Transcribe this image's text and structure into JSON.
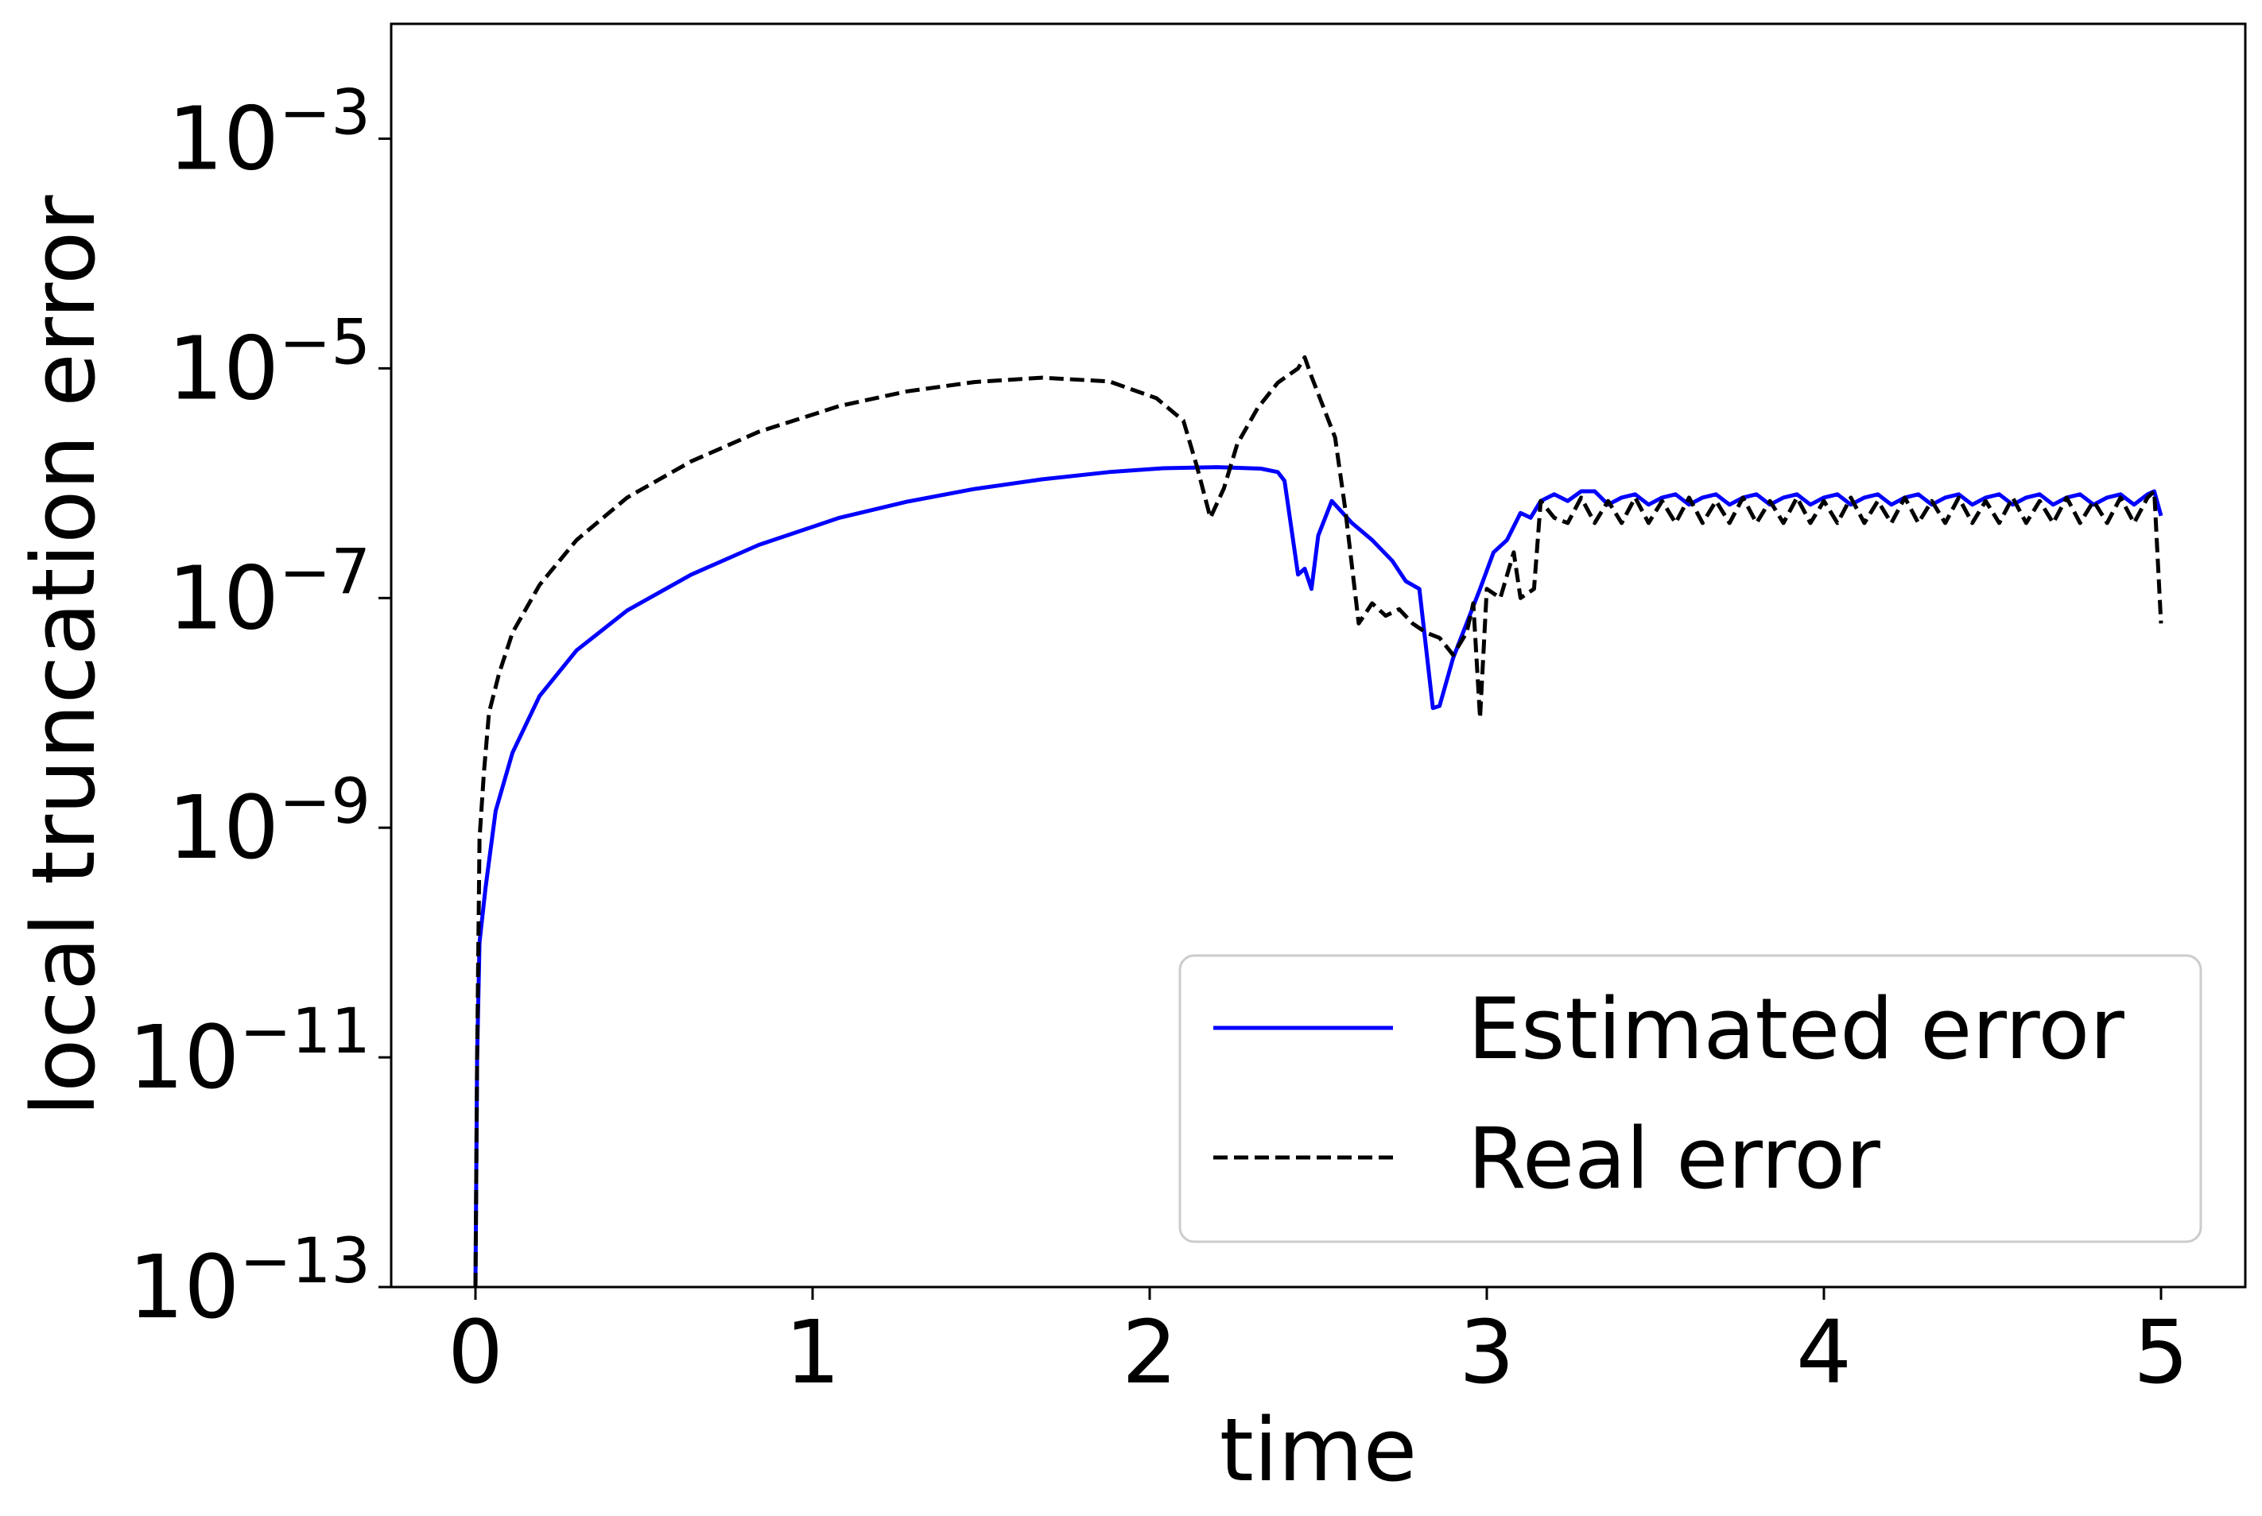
{
  "chart_data": {
    "type": "line",
    "title": "",
    "xlabel": "time",
    "ylabel": "local truncation error",
    "xlim": [
      -0.25,
      5.25
    ],
    "ylim": [
      1e-13,
      0.01
    ],
    "yscale": "log",
    "x_ticks": [
      {
        "value": 0,
        "label": "0"
      },
      {
        "value": 1,
        "label": "1"
      },
      {
        "value": 2,
        "label": "2"
      },
      {
        "value": 3,
        "label": "3"
      },
      {
        "value": 4,
        "label": "4"
      },
      {
        "value": 5,
        "label": "5"
      }
    ],
    "y_ticks": [
      {
        "value": 1e-13,
        "base": "10",
        "exp": "−13"
      },
      {
        "value": 1e-11,
        "base": "10",
        "exp": "−11"
      },
      {
        "value": 1e-09,
        "base": "10",
        "exp": "−9"
      },
      {
        "value": 1e-07,
        "base": "10",
        "exp": "−7"
      },
      {
        "value": 1e-05,
        "base": "10",
        "exp": "−5"
      },
      {
        "value": 0.001,
        "base": "10",
        "exp": "−3"
      }
    ],
    "grid": false,
    "legend_position": "lower-right",
    "series": [
      {
        "name": "Estimated error",
        "color": "#0000ff",
        "style": "solid",
        "points": [
          [
            0.0,
            1e-13
          ],
          [
            0.005,
            1e-11
          ],
          [
            0.012,
            1e-10
          ],
          [
            0.03,
            3e-10
          ],
          [
            0.06,
            1.4e-09
          ],
          [
            0.11,
            4.5e-09
          ],
          [
            0.19,
            1.4e-08
          ],
          [
            0.3,
            3.5e-08
          ],
          [
            0.45,
            7.8e-08
          ],
          [
            0.64,
            1.6e-07
          ],
          [
            0.84,
            2.9e-07
          ],
          [
            1.08,
            5e-07
          ],
          [
            1.28,
            6.9e-07
          ],
          [
            1.48,
            8.9e-07
          ],
          [
            1.68,
            1.08e-06
          ],
          [
            1.88,
            1.25e-06
          ],
          [
            2.04,
            1.35e-06
          ],
          [
            2.2,
            1.38e-06
          ],
          [
            2.33,
            1.34e-06
          ],
          [
            2.38,
            1.25e-06
          ],
          [
            2.4,
            1.05e-06
          ],
          [
            2.44,
            1.6e-07
          ],
          [
            2.46,
            1.8e-07
          ],
          [
            2.48,
            1.2e-07
          ],
          [
            2.5,
            3.5e-07
          ],
          [
            2.54,
            7e-07
          ],
          [
            2.6,
            4.5e-07
          ],
          [
            2.66,
            3.2e-07
          ],
          [
            2.72,
            2.1e-07
          ],
          [
            2.76,
            1.4e-07
          ],
          [
            2.8,
            1.2e-07
          ],
          [
            2.84,
            1.1e-08
          ],
          [
            2.86,
            1.15e-08
          ],
          [
            2.9,
            3e-08
          ],
          [
            2.94,
            6e-08
          ],
          [
            2.98,
            1.2e-07
          ],
          [
            3.02,
            2.5e-07
          ],
          [
            3.06,
            3.2e-07
          ],
          [
            3.1,
            5.5e-07
          ],
          [
            3.13,
            5e-07
          ],
          [
            3.16,
            7e-07
          ],
          [
            3.2,
            8e-07
          ],
          [
            3.24,
            7e-07
          ],
          [
            3.28,
            8.5e-07
          ],
          [
            3.32,
            8.5e-07
          ],
          [
            3.36,
            6.5e-07
          ],
          [
            3.4,
            7.5e-07
          ],
          [
            3.44,
            8e-07
          ],
          [
            3.48,
            6.5e-07
          ],
          [
            3.52,
            7.5e-07
          ],
          [
            3.56,
            8e-07
          ],
          [
            3.6,
            6.5e-07
          ],
          [
            3.64,
            7.5e-07
          ],
          [
            3.68,
            8e-07
          ],
          [
            3.72,
            6.5e-07
          ],
          [
            3.76,
            7.5e-07
          ],
          [
            3.8,
            8e-07
          ],
          [
            3.84,
            6.5e-07
          ],
          [
            3.88,
            7.5e-07
          ],
          [
            3.92,
            8e-07
          ],
          [
            3.96,
            6.5e-07
          ],
          [
            4.0,
            7.5e-07
          ],
          [
            4.04,
            8e-07
          ],
          [
            4.08,
            6.5e-07
          ],
          [
            4.12,
            7.5e-07
          ],
          [
            4.16,
            8e-07
          ],
          [
            4.2,
            6.5e-07
          ],
          [
            4.24,
            7.5e-07
          ],
          [
            4.28,
            8e-07
          ],
          [
            4.32,
            6.5e-07
          ],
          [
            4.36,
            7.5e-07
          ],
          [
            4.4,
            8e-07
          ],
          [
            4.44,
            6.5e-07
          ],
          [
            4.48,
            7.5e-07
          ],
          [
            4.52,
            8e-07
          ],
          [
            4.56,
            6.5e-07
          ],
          [
            4.6,
            7.5e-07
          ],
          [
            4.64,
            8e-07
          ],
          [
            4.68,
            6.5e-07
          ],
          [
            4.72,
            7.5e-07
          ],
          [
            4.76,
            8e-07
          ],
          [
            4.8,
            6.5e-07
          ],
          [
            4.84,
            7.5e-07
          ],
          [
            4.88,
            8e-07
          ],
          [
            4.92,
            6.5e-07
          ],
          [
            4.96,
            8e-07
          ],
          [
            4.98,
            8.5e-07
          ],
          [
            5.0,
            5.2e-07
          ]
        ]
      },
      {
        "name": "Real error",
        "color": "#000000",
        "style": "dashed",
        "points": [
          [
            0.0,
            1e-13
          ],
          [
            0.005,
            1e-11
          ],
          [
            0.012,
            8e-10
          ],
          [
            0.025,
            3e-09
          ],
          [
            0.04,
            1e-08
          ],
          [
            0.07,
            2.2e-08
          ],
          [
            0.11,
            5e-08
          ],
          [
            0.19,
            1.3e-07
          ],
          [
            0.3,
            3.2e-07
          ],
          [
            0.45,
            7.5e-07
          ],
          [
            0.64,
            1.55e-06
          ],
          [
            0.84,
            2.8e-06
          ],
          [
            1.08,
            4.7e-06
          ],
          [
            1.28,
            6.3e-06
          ],
          [
            1.48,
            7.6e-06
          ],
          [
            1.68,
            8.3e-06
          ],
          [
            1.88,
            7.7e-06
          ],
          [
            2.02,
            5.5e-06
          ],
          [
            2.1,
            3.5e-06
          ],
          [
            2.14,
            1.4e-06
          ],
          [
            2.18,
            5e-07
          ],
          [
            2.22,
            9e-07
          ],
          [
            2.26,
            2.2e-06
          ],
          [
            2.32,
            4.5e-06
          ],
          [
            2.38,
            7.5e-06
          ],
          [
            2.44,
            1e-05
          ],
          [
            2.46,
            1.25e-05
          ],
          [
            2.48,
            8.5e-06
          ],
          [
            2.5,
            6e-06
          ],
          [
            2.55,
            2.5e-06
          ],
          [
            2.58,
            6e-07
          ],
          [
            2.62,
            6e-08
          ],
          [
            2.66,
            9e-08
          ],
          [
            2.7,
            7e-08
          ],
          [
            2.74,
            8e-08
          ],
          [
            2.78,
            6e-08
          ],
          [
            2.82,
            5e-08
          ],
          [
            2.86,
            4.5e-08
          ],
          [
            2.9,
            3.2e-08
          ],
          [
            2.94,
            5e-08
          ],
          [
            2.96,
            9e-08
          ],
          [
            2.98,
            9e-09
          ],
          [
            3.0,
            1.2e-07
          ],
          [
            3.04,
            1e-07
          ],
          [
            3.08,
            2.5e-07
          ],
          [
            3.1,
            1e-07
          ],
          [
            3.14,
            1.2e-07
          ],
          [
            3.16,
            7e-07
          ],
          [
            3.2,
            5e-07
          ],
          [
            3.24,
            4.5e-07
          ],
          [
            3.28,
            7.5e-07
          ],
          [
            3.32,
            4.5e-07
          ],
          [
            3.36,
            7e-07
          ],
          [
            3.4,
            4.5e-07
          ],
          [
            3.44,
            7.5e-07
          ],
          [
            3.48,
            4.5e-07
          ],
          [
            3.52,
            7e-07
          ],
          [
            3.56,
            4.5e-07
          ],
          [
            3.6,
            7.5e-07
          ],
          [
            3.64,
            4.5e-07
          ],
          [
            3.68,
            7e-07
          ],
          [
            3.72,
            4.5e-07
          ],
          [
            3.76,
            7.5e-07
          ],
          [
            3.8,
            4.5e-07
          ],
          [
            3.84,
            7e-07
          ],
          [
            3.88,
            4.5e-07
          ],
          [
            3.92,
            7.5e-07
          ],
          [
            3.96,
            4.5e-07
          ],
          [
            4.0,
            7e-07
          ],
          [
            4.04,
            4.5e-07
          ],
          [
            4.08,
            7.5e-07
          ],
          [
            4.12,
            4.5e-07
          ],
          [
            4.16,
            7e-07
          ],
          [
            4.2,
            4.5e-07
          ],
          [
            4.24,
            7.5e-07
          ],
          [
            4.28,
            4.5e-07
          ],
          [
            4.32,
            7e-07
          ],
          [
            4.36,
            4.5e-07
          ],
          [
            4.4,
            7.5e-07
          ],
          [
            4.44,
            4.5e-07
          ],
          [
            4.48,
            7e-07
          ],
          [
            4.52,
            4.5e-07
          ],
          [
            4.56,
            7.5e-07
          ],
          [
            4.6,
            4.5e-07
          ],
          [
            4.64,
            7e-07
          ],
          [
            4.68,
            4.5e-07
          ],
          [
            4.72,
            7.5e-07
          ],
          [
            4.76,
            4.5e-07
          ],
          [
            4.8,
            7e-07
          ],
          [
            4.84,
            4.5e-07
          ],
          [
            4.88,
            7.5e-07
          ],
          [
            4.92,
            4.5e-07
          ],
          [
            4.96,
            7.5e-07
          ],
          [
            4.98,
            8.5e-07
          ],
          [
            5.0,
            6e-08
          ]
        ]
      }
    ]
  }
}
